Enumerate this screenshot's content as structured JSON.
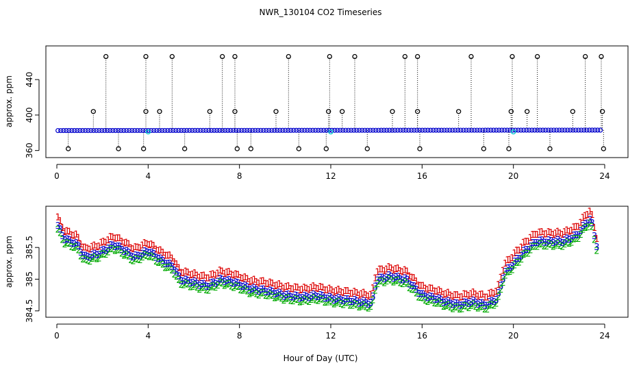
{
  "title": "NWR_130104  CO2 Timeseries",
  "xlabel": "Hour of Day (UTC)",
  "colors": {
    "point": "#0000cc",
    "spike": "#000000",
    "flag": "#00cccc",
    "s1": "#dd0000",
    "s2": "#00aa00",
    "s3": "#0000cc"
  },
  "chart_data": [
    {
      "type": "scatter",
      "panel": "top",
      "ylabel": "approx. ppm",
      "xlim": [
        0,
        24
      ],
      "ylim": [
        352,
        478
      ],
      "xticks": [
        0,
        4,
        8,
        12,
        16,
        20,
        24
      ],
      "yticks": [
        360,
        400,
        440
      ],
      "baseline": {
        "x_start": 0.05,
        "x_end": 23.9,
        "y_start": 382.5,
        "y_end": 383.0
      },
      "spikes_high": [
        {
          "x": 2.15,
          "y": 466
        },
        {
          "x": 3.9,
          "y": 466
        },
        {
          "x": 5.05,
          "y": 466
        },
        {
          "x": 7.25,
          "y": 466
        },
        {
          "x": 7.8,
          "y": 466
        },
        {
          "x": 10.15,
          "y": 466
        },
        {
          "x": 11.95,
          "y": 466
        },
        {
          "x": 13.05,
          "y": 466
        },
        {
          "x": 15.25,
          "y": 466
        },
        {
          "x": 15.8,
          "y": 466
        },
        {
          "x": 18.15,
          "y": 466
        },
        {
          "x": 19.95,
          "y": 466
        },
        {
          "x": 21.05,
          "y": 466
        },
        {
          "x": 23.15,
          "y": 466
        },
        {
          "x": 23.85,
          "y": 466
        }
      ],
      "spikes_mid": [
        {
          "x": 1.6,
          "y": 404
        },
        {
          "x": 3.9,
          "y": 404
        },
        {
          "x": 4.5,
          "y": 404
        },
        {
          "x": 6.7,
          "y": 404
        },
        {
          "x": 7.8,
          "y": 404
        },
        {
          "x": 9.6,
          "y": 404
        },
        {
          "x": 11.9,
          "y": 404
        },
        {
          "x": 12.5,
          "y": 404
        },
        {
          "x": 14.7,
          "y": 404
        },
        {
          "x": 15.8,
          "y": 404
        },
        {
          "x": 17.6,
          "y": 404
        },
        {
          "x": 19.9,
          "y": 404
        },
        {
          "x": 20.6,
          "y": 404
        },
        {
          "x": 22.6,
          "y": 404
        },
        {
          "x": 23.9,
          "y": 404
        }
      ],
      "spikes_low": [
        {
          "x": 0.5,
          "y": 362
        },
        {
          "x": 2.7,
          "y": 362
        },
        {
          "x": 3.8,
          "y": 362
        },
        {
          "x": 5.6,
          "y": 362
        },
        {
          "x": 7.9,
          "y": 362
        },
        {
          "x": 8.5,
          "y": 362
        },
        {
          "x": 10.6,
          "y": 362
        },
        {
          "x": 11.8,
          "y": 362
        },
        {
          "x": 13.6,
          "y": 362
        },
        {
          "x": 15.9,
          "y": 362
        },
        {
          "x": 18.7,
          "y": 362
        },
        {
          "x": 19.8,
          "y": 362
        },
        {
          "x": 21.6,
          "y": 362
        },
        {
          "x": 23.95,
          "y": 362
        }
      ],
      "flagged": [
        {
          "x": 4.0,
          "y": 381
        },
        {
          "x": 12.0,
          "y": 381
        },
        {
          "x": 20.0,
          "y": 381
        }
      ]
    },
    {
      "type": "scatter",
      "panel": "bottom",
      "ylabel": "approx. ppm",
      "xlim": [
        0,
        24
      ],
      "ylim": [
        384.4,
        386.15
      ],
      "xticks": [
        0,
        4,
        8,
        12,
        16,
        20,
        24
      ],
      "yticks": [
        384.5,
        385.0,
        385.5
      ],
      "ytick_labels": [
        "384.5",
        "385",
        "385.5"
      ],
      "labels": [
        "1",
        "2",
        "3"
      ],
      "offsets": {
        "1": 0.13,
        "2": -0.06,
        "3": 0
      },
      "x_step": 0.1,
      "series_anchors": {
        "x": [
          0.05,
          0.3,
          0.9,
          1.2,
          1.8,
          2.5,
          3.0,
          3.4,
          4.0,
          4.6,
          5.1,
          5.4,
          6.0,
          6.6,
          7.2,
          7.8,
          8.5,
          9.2,
          10.0,
          10.8,
          11.4,
          12.0,
          12.6,
          13.2,
          13.8,
          14.0,
          14.6,
          15.3,
          16.0,
          16.6,
          17.0,
          17.6,
          18.2,
          18.8,
          19.3,
          19.6,
          20.0,
          20.5,
          21.0,
          21.6,
          22.2,
          22.8,
          23.2,
          23.4,
          23.7
        ],
        "y": [
          385.85,
          385.65,
          385.55,
          385.35,
          385.4,
          385.55,
          385.45,
          385.35,
          385.45,
          385.3,
          385.2,
          385.0,
          384.95,
          384.9,
          385.0,
          384.95,
          384.85,
          384.82,
          384.75,
          384.72,
          384.75,
          384.7,
          384.68,
          384.65,
          384.62,
          385.0,
          385.05,
          385.0,
          384.75,
          384.7,
          384.65,
          384.6,
          384.65,
          384.6,
          384.7,
          385.1,
          385.25,
          385.45,
          385.6,
          385.6,
          385.6,
          385.7,
          385.9,
          385.95,
          385.45
        ]
      }
    }
  ]
}
